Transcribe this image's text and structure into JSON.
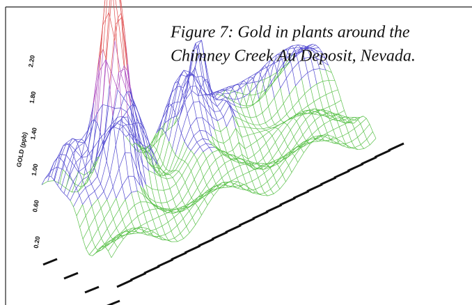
{
  "caption": [
    "Figure 7: Gold in plants around the",
    "Chimney Creek Au Deposit, Nevada."
  ],
  "axis": {
    "label": "GOLD (ppb)",
    "ticks": [
      "2.20",
      "1.80",
      "1.40",
      "1.00",
      "0.60",
      "0.20"
    ]
  }
}
